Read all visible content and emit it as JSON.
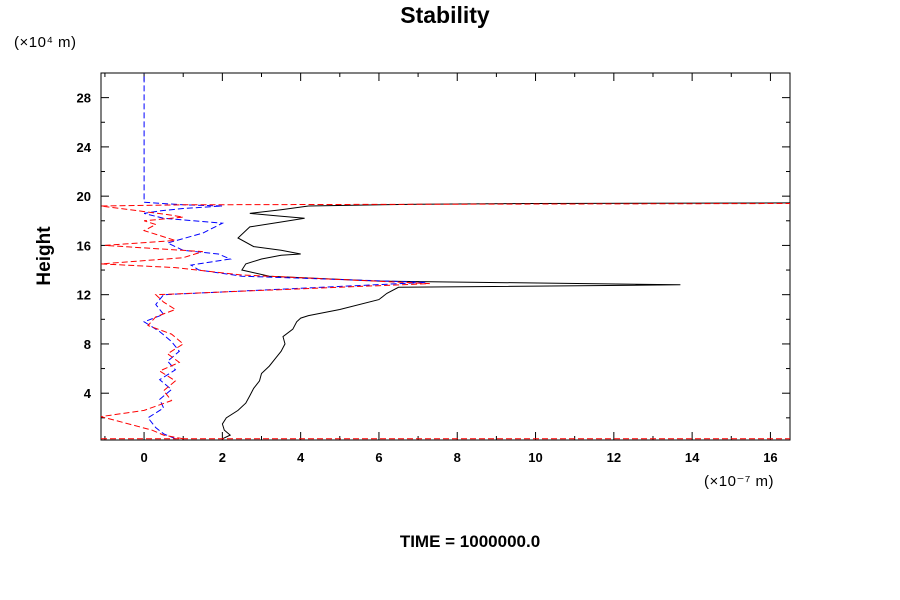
{
  "chart_data": {
    "type": "line",
    "title": "Stability",
    "ylabel": "Height",
    "y_unit": "(×10⁴ m)",
    "x_unit": "(×10⁻⁷ m)",
    "footer": "TIME = 1000000.0",
    "xlim": [
      -1.1,
      16.5
    ],
    "ylim": [
      0.2,
      30
    ],
    "x_ticks": [
      0,
      2,
      4,
      6,
      8,
      10,
      12,
      14,
      16
    ],
    "y_ticks": [
      4,
      8,
      12,
      16,
      20,
      24,
      28
    ],
    "grid": false,
    "series": [
      {
        "color": "#000000",
        "style": "solid",
        "x": [
          2.0,
          2.2,
          2.05,
          2.0,
          2.1,
          2.4,
          2.6,
          2.7,
          2.8,
          2.95,
          3.0,
          3.2,
          3.35,
          3.5,
          3.6,
          3.55,
          3.8,
          3.9,
          4.0,
          4.2,
          5.0,
          6.0,
          6.2,
          6.5,
          13.7,
          6.0,
          3.2,
          2.5,
          2.6,
          3.0,
          3.5,
          4.0,
          3.5,
          2.8,
          2.4,
          2.7,
          3.5,
          4.1,
          3.4,
          2.7,
          3.5,
          4.2,
          7.0,
          10.0,
          16.5
        ],
        "y": [
          0.3,
          0.6,
          1.0,
          1.5,
          2.0,
          2.6,
          3.2,
          3.8,
          4.4,
          5.0,
          5.6,
          6.2,
          6.8,
          7.4,
          8.0,
          8.6,
          9.2,
          9.8,
          10.1,
          10.3,
          10.8,
          11.6,
          12.1,
          12.6,
          12.8,
          13.1,
          13.5,
          14.0,
          14.5,
          14.9,
          15.2,
          15.3,
          15.6,
          15.9,
          16.6,
          17.5,
          17.9,
          18.2,
          18.4,
          18.6,
          18.9,
          19.2,
          19.35,
          19.4,
          19.45
        ]
      },
      {
        "color": "#0000ff",
        "style": "dashed",
        "x": [
          0.8,
          0.5,
          0.3,
          0.1,
          0.5,
          0.4,
          0.7,
          0.4,
          0.8,
          0.6,
          0.9,
          0.7,
          0.4,
          0.0,
          0.5,
          0.3,
          0.5,
          7.2,
          2.5,
          1.4,
          1.2,
          2.2,
          1.9,
          1.0,
          0.6,
          1.5,
          2.0,
          0.5,
          0.0,
          0.4,
          1.0,
          2.0,
          1.0,
          0.0,
          0.0,
          0.0
        ],
        "y": [
          0.3,
          0.7,
          1.2,
          2.0,
          2.8,
          3.5,
          4.3,
          5.1,
          5.9,
          6.6,
          7.4,
          8.2,
          9.0,
          9.8,
          10.4,
          11.2,
          12.0,
          13.0,
          13.5,
          14.0,
          14.4,
          14.9,
          15.3,
          15.6,
          16.2,
          17.0,
          17.8,
          18.2,
          18.6,
          18.8,
          19.0,
          19.2,
          19.3,
          19.5,
          25.0,
          30.0
        ]
      },
      {
        "color": "#ff0000",
        "style": "dashed",
        "x": [
          1.0,
          0.5,
          0.2,
          -1.1,
          0.0,
          0.7,
          0.5,
          0.8,
          0.4,
          0.9,
          0.6,
          1.0,
          0.7,
          0.1,
          0.3,
          0.8,
          0.5,
          0.3,
          7.3,
          2.5,
          0.8,
          -1.1,
          1.0,
          1.5,
          -1.0,
          0.8,
          0.0,
          0.3,
          0.0,
          1.0,
          0.6,
          -1.1,
          1.0,
          16.5
        ],
        "y": [
          0.3,
          0.6,
          1.0,
          2.1,
          2.6,
          3.4,
          4.2,
          5.0,
          5.8,
          6.5,
          7.2,
          8.0,
          8.8,
          9.5,
          10.2,
          10.8,
          11.4,
          12.0,
          12.9,
          13.6,
          14.2,
          14.5,
          15.0,
          15.5,
          16.0,
          16.4,
          17.2,
          17.7,
          18.0,
          18.3,
          18.5,
          19.2,
          19.3,
          19.4
        ]
      },
      {
        "color": "#ff0000",
        "style": "dashed",
        "x": [
          -1.1,
          16.5
        ],
        "y": [
          0.3,
          0.3
        ]
      }
    ]
  }
}
